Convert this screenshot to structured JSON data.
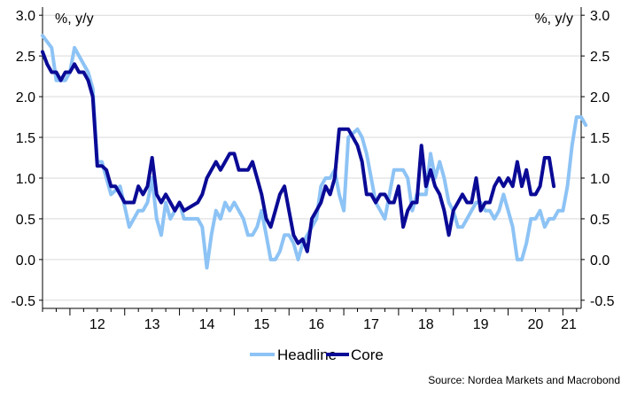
{
  "chart_data": {
    "type": "line",
    "title": "",
    "xlabel": "",
    "ylabel_left": "%, y/y",
    "ylabel_right": "%, y/y",
    "ylim": [
      -0.6,
      3.1
    ],
    "yticks": [
      3.0,
      2.5,
      2.0,
      1.5,
      1.0,
      0.5,
      0.0,
      -0.5
    ],
    "ytick_labels": [
      "3.0",
      "2.5",
      "2.0",
      "1.5",
      "1.0",
      "0.5",
      "0.0",
      "-0.5"
    ],
    "x_start": "2011-07",
    "x_end": "2021-05",
    "xtick_labels": [
      "12",
      "13",
      "14",
      "15",
      "16",
      "17",
      "18",
      "19",
      "20",
      "21"
    ],
    "grid": true,
    "legend_position": "bottom-center",
    "source": "Source: Nordea Markets and Macrobond",
    "series": [
      {
        "name": "Headline",
        "color": "#8dc3f5",
        "points": [
          [
            "2011-07",
            2.75
          ],
          [
            "2011-09",
            2.6
          ],
          [
            "2011-10",
            2.2
          ],
          [
            "2011-12",
            2.2
          ],
          [
            "2012-01",
            2.3
          ],
          [
            "2012-02",
            2.6
          ],
          [
            "2012-03",
            2.5
          ],
          [
            "2012-05",
            2.3
          ],
          [
            "2012-06",
            2.1
          ],
          [
            "2012-07",
            1.2
          ],
          [
            "2012-08",
            1.2
          ],
          [
            "2012-09",
            1.0
          ],
          [
            "2012-10",
            0.8
          ],
          [
            "2012-12",
            0.9
          ],
          [
            "2013-02",
            0.4
          ],
          [
            "2013-04",
            0.6
          ],
          [
            "2013-05",
            0.6
          ],
          [
            "2013-06",
            0.7
          ],
          [
            "2013-07",
            1.0
          ],
          [
            "2013-08",
            0.5
          ],
          [
            "2013-09",
            0.3
          ],
          [
            "2013-10",
            0.7
          ],
          [
            "2013-11",
            0.5
          ],
          [
            "2014-01",
            0.7
          ],
          [
            "2014-02",
            0.5
          ],
          [
            "2014-05",
            0.5
          ],
          [
            "2014-06",
            0.4
          ],
          [
            "2014-07",
            -0.1
          ],
          [
            "2014-08",
            0.3
          ],
          [
            "2014-09",
            0.6
          ],
          [
            "2014-10",
            0.5
          ],
          [
            "2014-11",
            0.7
          ],
          [
            "2014-12",
            0.6
          ],
          [
            "2015-01",
            0.7
          ],
          [
            "2015-02",
            0.6
          ],
          [
            "2015-03",
            0.5
          ],
          [
            "2015-04",
            0.3
          ],
          [
            "2015-05",
            0.3
          ],
          [
            "2015-06",
            0.4
          ],
          [
            "2015-07",
            0.6
          ],
          [
            "2015-08",
            0.3
          ],
          [
            "2015-09",
            0.0
          ],
          [
            "2015-10",
            0.0
          ],
          [
            "2015-11",
            0.1
          ],
          [
            "2015-12",
            0.3
          ],
          [
            "2016-01",
            0.3
          ],
          [
            "2016-02",
            0.2
          ],
          [
            "2016-03",
            0.0
          ],
          [
            "2016-04",
            0.2
          ],
          [
            "2016-05",
            0.3
          ],
          [
            "2016-06",
            0.4
          ],
          [
            "2016-07",
            0.5
          ],
          [
            "2016-08",
            0.9
          ],
          [
            "2016-09",
            1.0
          ],
          [
            "2016-10",
            1.0
          ],
          [
            "2016-11",
            1.1
          ],
          [
            "2016-12",
            0.8
          ],
          [
            "2017-01",
            0.6
          ],
          [
            "2017-02",
            1.5
          ],
          [
            "2017-03",
            1.55
          ],
          [
            "2017-04",
            1.6
          ],
          [
            "2017-05",
            1.5
          ],
          [
            "2017-06",
            1.3
          ],
          [
            "2017-07",
            1.0
          ],
          [
            "2017-08",
            0.7
          ],
          [
            "2017-09",
            0.6
          ],
          [
            "2017-10",
            0.5
          ],
          [
            "2017-11",
            0.8
          ],
          [
            "2017-12",
            1.1
          ],
          [
            "2018-01",
            1.1
          ],
          [
            "2018-02",
            1.1
          ],
          [
            "2018-03",
            1.0
          ],
          [
            "2018-04",
            0.6
          ],
          [
            "2018-05",
            0.8
          ],
          [
            "2018-06",
            0.8
          ],
          [
            "2018-07",
            0.8
          ],
          [
            "2018-08",
            1.3
          ],
          [
            "2018-09",
            1.0
          ],
          [
            "2018-10",
            1.2
          ],
          [
            "2018-11",
            1.0
          ],
          [
            "2018-12",
            0.7
          ],
          [
            "2019-01",
            0.6
          ],
          [
            "2019-02",
            0.4
          ],
          [
            "2019-03",
            0.4
          ],
          [
            "2019-04",
            0.5
          ],
          [
            "2019-05",
            0.6
          ],
          [
            "2019-06",
            0.7
          ],
          [
            "2019-07",
            0.7
          ],
          [
            "2019-08",
            0.6
          ],
          [
            "2019-09",
            0.6
          ],
          [
            "2019-10",
            0.5
          ],
          [
            "2019-11",
            0.6
          ],
          [
            "2019-12",
            0.8
          ],
          [
            "2020-01",
            0.6
          ],
          [
            "2020-02",
            0.4
          ],
          [
            "2020-03",
            0.0
          ],
          [
            "2020-04",
            0.0
          ],
          [
            "2020-05",
            0.2
          ],
          [
            "2020-06",
            0.5
          ],
          [
            "2020-07",
            0.5
          ],
          [
            "2020-08",
            0.6
          ],
          [
            "2020-09",
            0.4
          ],
          [
            "2020-10",
            0.5
          ],
          [
            "2020-11",
            0.5
          ],
          [
            "2020-12",
            0.6
          ],
          [
            "2021-01",
            0.6
          ],
          [
            "2021-02",
            0.9
          ],
          [
            "2021-03",
            1.4
          ],
          [
            "2021-04",
            1.75
          ],
          [
            "2021-05",
            1.75
          ],
          [
            "2021-06",
            1.65
          ]
        ]
      },
      {
        "name": "Core",
        "color": "#0a0a96",
        "points": [
          [
            "2011-07",
            2.55
          ],
          [
            "2011-08",
            2.4
          ],
          [
            "2011-09",
            2.3
          ],
          [
            "2011-10",
            2.3
          ],
          [
            "2011-11",
            2.2
          ],
          [
            "2011-12",
            2.3
          ],
          [
            "2012-01",
            2.3
          ],
          [
            "2012-02",
            2.4
          ],
          [
            "2012-03",
            2.3
          ],
          [
            "2012-04",
            2.3
          ],
          [
            "2012-05",
            2.2
          ],
          [
            "2012-06",
            2.0
          ],
          [
            "2012-07",
            1.15
          ],
          [
            "2012-08",
            1.15
          ],
          [
            "2012-09",
            1.1
          ],
          [
            "2012-10",
            0.9
          ],
          [
            "2012-11",
            0.9
          ],
          [
            "2012-12",
            0.8
          ],
          [
            "2013-01",
            0.7
          ],
          [
            "2013-03",
            0.7
          ],
          [
            "2013-04",
            0.9
          ],
          [
            "2013-05",
            0.8
          ],
          [
            "2013-06",
            0.9
          ],
          [
            "2013-07",
            1.25
          ],
          [
            "2013-08",
            0.8
          ],
          [
            "2013-09",
            0.7
          ],
          [
            "2013-10",
            0.8
          ],
          [
            "2013-11",
            0.7
          ],
          [
            "2013-12",
            0.6
          ],
          [
            "2014-01",
            0.7
          ],
          [
            "2014-02",
            0.6
          ],
          [
            "2014-05",
            0.7
          ],
          [
            "2014-06",
            0.8
          ],
          [
            "2014-07",
            1.0
          ],
          [
            "2014-08",
            1.1
          ],
          [
            "2014-09",
            1.2
          ],
          [
            "2014-10",
            1.1
          ],
          [
            "2014-11",
            1.2
          ],
          [
            "2014-12",
            1.3
          ],
          [
            "2015-01",
            1.3
          ],
          [
            "2015-02",
            1.1
          ],
          [
            "2015-04",
            1.1
          ],
          [
            "2015-05",
            1.2
          ],
          [
            "2015-06",
            1.0
          ],
          [
            "2015-07",
            0.8
          ],
          [
            "2015-08",
            0.5
          ],
          [
            "2015-09",
            0.4
          ],
          [
            "2015-10",
            0.6
          ],
          [
            "2015-11",
            0.8
          ],
          [
            "2015-12",
            0.9
          ],
          [
            "2016-01",
            0.6
          ],
          [
            "2016-02",
            0.3
          ],
          [
            "2016-03",
            0.2
          ],
          [
            "2016-04",
            0.25
          ],
          [
            "2016-05",
            0.1
          ],
          [
            "2016-06",
            0.5
          ],
          [
            "2016-07",
            0.6
          ],
          [
            "2016-08",
            0.7
          ],
          [
            "2016-09",
            0.9
          ],
          [
            "2016-10",
            0.8
          ],
          [
            "2016-11",
            1.0
          ],
          [
            "2016-12",
            1.6
          ],
          [
            "2017-01",
            1.6
          ],
          [
            "2017-02",
            1.6
          ],
          [
            "2017-03",
            1.5
          ],
          [
            "2017-04",
            1.4
          ],
          [
            "2017-05",
            1.2
          ],
          [
            "2017-06",
            0.8
          ],
          [
            "2017-07",
            0.8
          ],
          [
            "2017-08",
            0.7
          ],
          [
            "2017-09",
            0.8
          ],
          [
            "2017-10",
            0.8
          ],
          [
            "2017-11",
            0.7
          ],
          [
            "2017-12",
            0.7
          ],
          [
            "2018-01",
            0.9
          ],
          [
            "2018-02",
            0.4
          ],
          [
            "2018-03",
            0.6
          ],
          [
            "2018-04",
            0.7
          ],
          [
            "2018-05",
            0.7
          ],
          [
            "2018-06",
            1.4
          ],
          [
            "2018-07",
            0.9
          ],
          [
            "2018-08",
            1.1
          ],
          [
            "2018-09",
            0.9
          ],
          [
            "2018-10",
            0.8
          ],
          [
            "2018-11",
            0.6
          ],
          [
            "2018-12",
            0.3
          ],
          [
            "2019-01",
            0.6
          ],
          [
            "2019-02",
            0.7
          ],
          [
            "2019-03",
            0.8
          ],
          [
            "2019-04",
            0.7
          ],
          [
            "2019-05",
            0.7
          ],
          [
            "2019-06",
            1.0
          ],
          [
            "2019-07",
            0.6
          ],
          [
            "2019-08",
            0.7
          ],
          [
            "2019-09",
            0.7
          ],
          [
            "2019-10",
            0.9
          ],
          [
            "2019-11",
            1.0
          ],
          [
            "2019-12",
            0.9
          ],
          [
            "2020-01",
            1.0
          ],
          [
            "2020-02",
            0.9
          ],
          [
            "2020-03",
            1.2
          ],
          [
            "2020-04",
            0.9
          ],
          [
            "2020-05",
            1.1
          ],
          [
            "2020-06",
            0.8
          ],
          [
            "2020-07",
            0.8
          ],
          [
            "2020-08",
            0.9
          ],
          [
            "2020-09",
            1.25
          ],
          [
            "2020-10",
            1.25
          ],
          [
            "2020-11",
            0.9
          ]
        ]
      }
    ]
  }
}
